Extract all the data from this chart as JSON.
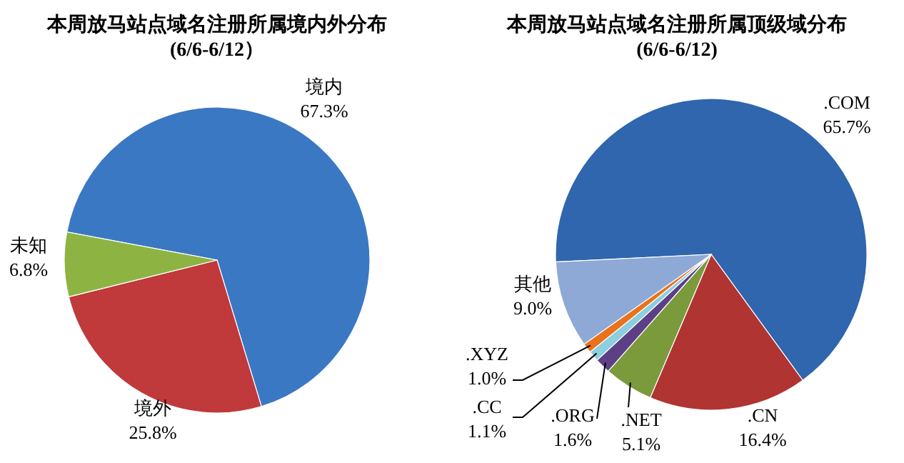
{
  "chart_data": [
    {
      "type": "pie",
      "title": "本周放马站点域名注册所属境内外分布",
      "subtitle": "(6/6-6/12）",
      "categories": [
        "境内",
        "境外",
        "未知"
      ],
      "values": [
        67.3,
        25.8,
        6.8
      ],
      "colors": [
        "#3b78c4",
        "#c0393b",
        "#8db443"
      ],
      "value_labels": [
        "67.3%",
        "25.8%",
        "6.8%"
      ]
    },
    {
      "type": "pie",
      "title": "本周放马站点域名注册所属顶级域分布",
      "subtitle": "(6/6-6/12)",
      "categories": [
        ".COM",
        ".CN",
        ".NET",
        ".ORG",
        ".CC",
        ".XYZ",
        "其他"
      ],
      "values": [
        65.7,
        16.4,
        5.1,
        1.6,
        1.1,
        1.0,
        9.0
      ],
      "colors": [
        "#2f66ad",
        "#b03432",
        "#7a9a3c",
        "#5d3f86",
        "#8ccfe0",
        "#e8731c",
        "#8ea9d6"
      ],
      "value_labels": [
        "65.7%",
        "16.4%",
        "5.1%",
        "1.6%",
        "1.1%",
        "1.0%",
        "9.0%"
      ]
    }
  ]
}
